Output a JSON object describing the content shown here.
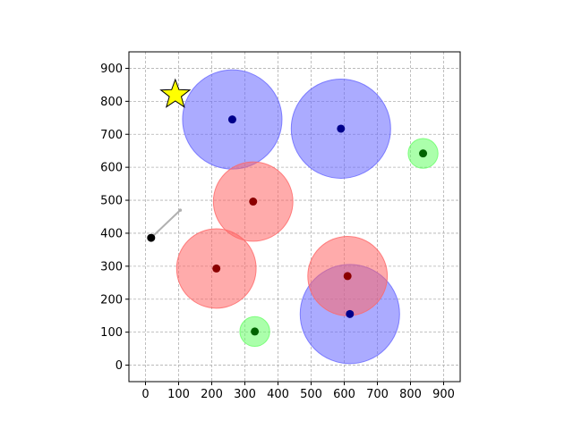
{
  "chart_data": {
    "type": "scatter",
    "title": "",
    "xlabel": "",
    "ylabel": "",
    "xlim": [
      -50,
      950
    ],
    "ylim": [
      -50,
      950
    ],
    "x_ticks": [
      0,
      100,
      200,
      300,
      400,
      500,
      600,
      700,
      800,
      900
    ],
    "y_ticks": [
      0,
      100,
      200,
      300,
      400,
      500,
      600,
      700,
      800,
      900
    ],
    "grid": true,
    "aspect": "equal",
    "colors": {
      "blue_fill": "#6666ff",
      "blue_center": "#00008b",
      "red_fill": "#ff6666",
      "red_center": "#8b0000",
      "green_fill": "#66ff66",
      "green_center": "#006400",
      "agent": "#000000",
      "heading_line": "#b0b0b0",
      "goal_star": "#ffff00",
      "grid": "#b0b0b0"
    },
    "circles": [
      {
        "group": "blue",
        "x": 262,
        "y": 745,
        "r": 150
      },
      {
        "group": "blue",
        "x": 590,
        "y": 717,
        "r": 150
      },
      {
        "group": "blue",
        "x": 617,
        "y": 155,
        "r": 150
      },
      {
        "group": "red",
        "x": 325,
        "y": 496,
        "r": 120
      },
      {
        "group": "red",
        "x": 214,
        "y": 293,
        "r": 120
      },
      {
        "group": "red",
        "x": 610,
        "y": 270,
        "r": 120
      },
      {
        "group": "green",
        "x": 838,
        "y": 642,
        "r": 45
      },
      {
        "group": "green",
        "x": 330,
        "y": 102,
        "r": 45
      }
    ],
    "agent": {
      "x": 17,
      "y": 386
    },
    "heading_end": {
      "x": 105,
      "y": 470
    },
    "goal": {
      "x": 90,
      "y": 820
    }
  }
}
